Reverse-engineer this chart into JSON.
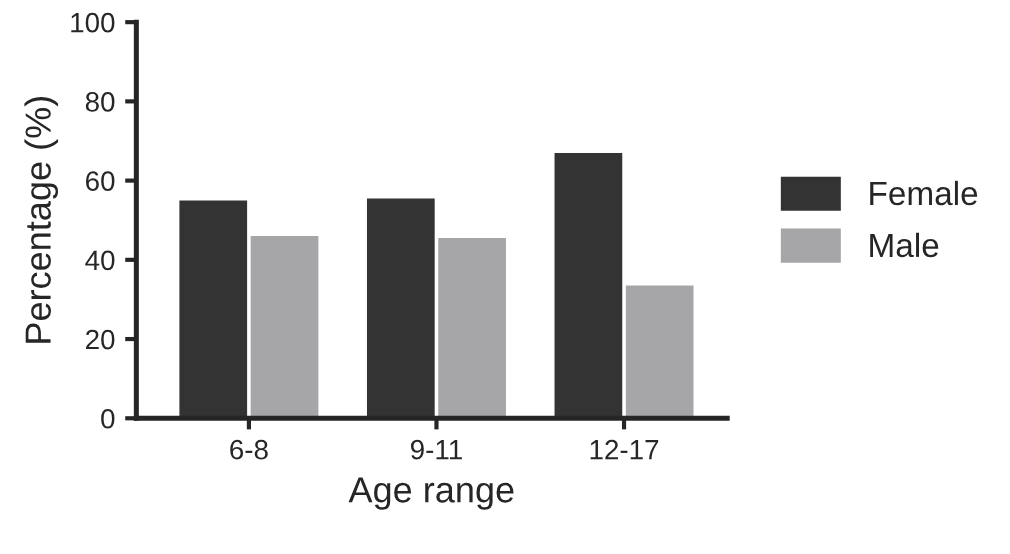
{
  "chart_data": {
    "type": "bar",
    "xlabel": "Age range",
    "ylabel": "Percentage (%)",
    "categories": [
      "6-8",
      "9-11",
      "12-17"
    ],
    "series": [
      {
        "name": "Female",
        "color": "#333333",
        "values": [
          55,
          55.5,
          67
        ]
      },
      {
        "name": "Male",
        "color": "#a6a6a8",
        "values": [
          46,
          45.5,
          33.5
        ]
      }
    ],
    "ylim": [
      0,
      100
    ],
    "yticks": [
      0,
      20,
      40,
      60,
      80,
      100
    ],
    "grid": false,
    "legend": "right"
  }
}
